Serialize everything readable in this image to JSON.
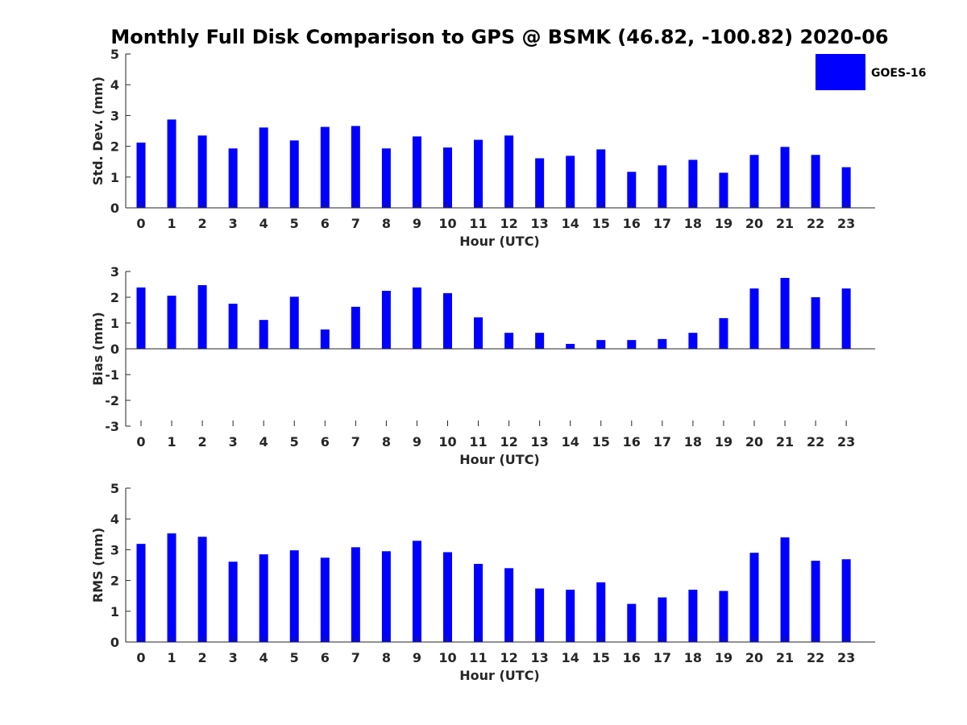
{
  "figure": {
    "title": "Monthly Full Disk Comparison to GPS @ BSMK (46.82, -100.82) 2020-06",
    "bar_color": "#0000ff",
    "legend": {
      "label": "GOES-16",
      "placement": "top-right"
    }
  },
  "chart_data": [
    {
      "type": "bar",
      "xlabel": "Hour (UTC)",
      "ylabel": "Std. Dev. (mm)",
      "ylim": [
        0,
        5
      ],
      "yticks": [
        0,
        1,
        2,
        3,
        4,
        5
      ],
      "categories": [
        "0",
        "1",
        "2",
        "3",
        "4",
        "5",
        "6",
        "7",
        "8",
        "9",
        "10",
        "11",
        "12",
        "13",
        "14",
        "15",
        "16",
        "17",
        "18",
        "19",
        "20",
        "21",
        "22",
        "23"
      ],
      "series": [
        {
          "name": "GOES-16",
          "values": [
            2.12,
            2.87,
            2.35,
            1.93,
            2.61,
            2.19,
            2.63,
            2.66,
            1.93,
            2.32,
            1.96,
            2.21,
            2.35,
            1.61,
            1.69,
            1.9,
            1.17,
            1.38,
            1.56,
            1.14,
            1.72,
            1.98,
            1.72,
            1.32
          ]
        }
      ],
      "grid": false
    },
    {
      "type": "bar",
      "xlabel": "Hour (UTC)",
      "ylabel": "Bias (mm)",
      "ylim": [
        -3,
        3
      ],
      "yticks": [
        -3,
        -2,
        -1,
        0,
        1,
        2,
        3
      ],
      "categories": [
        "0",
        "1",
        "2",
        "3",
        "4",
        "5",
        "6",
        "7",
        "8",
        "9",
        "10",
        "11",
        "12",
        "13",
        "14",
        "15",
        "16",
        "17",
        "18",
        "19",
        "20",
        "21",
        "22",
        "23"
      ],
      "series": [
        {
          "name": "GOES-16",
          "values": [
            2.38,
            2.06,
            2.47,
            1.75,
            1.12,
            2.02,
            0.75,
            1.63,
            2.25,
            2.38,
            2.16,
            1.22,
            0.62,
            0.62,
            0.19,
            0.34,
            0.34,
            0.38,
            0.62,
            1.19,
            2.34,
            2.75,
            2.0,
            2.34
          ]
        }
      ],
      "grid": false
    },
    {
      "type": "bar",
      "xlabel": "Hour (UTC)",
      "ylabel": "RMS (mm)",
      "ylim": [
        0,
        5
      ],
      "yticks": [
        0,
        1,
        2,
        3,
        4,
        5
      ],
      "categories": [
        "0",
        "1",
        "2",
        "3",
        "4",
        "5",
        "6",
        "7",
        "8",
        "9",
        "10",
        "11",
        "12",
        "13",
        "14",
        "15",
        "16",
        "17",
        "18",
        "19",
        "20",
        "21",
        "22",
        "23"
      ],
      "series": [
        {
          "name": "GOES-16",
          "values": [
            3.19,
            3.53,
            3.42,
            2.61,
            2.85,
            2.98,
            2.74,
            3.08,
            2.95,
            3.29,
            2.92,
            2.54,
            2.4,
            1.74,
            1.7,
            1.94,
            1.24,
            1.45,
            1.7,
            1.66,
            2.9,
            3.4,
            2.64,
            2.69
          ]
        }
      ],
      "grid": false
    }
  ]
}
